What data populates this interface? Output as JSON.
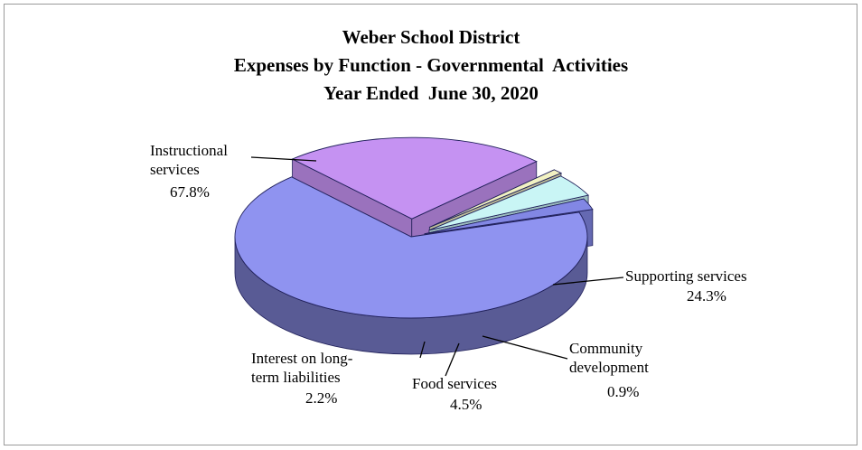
{
  "chart_data": {
    "type": "pie",
    "title": "Weber School District",
    "subtitle": "Expenses by Function - Governmental  Activities",
    "subtitle2": "Year Ended  June 30, 2020",
    "slices": [
      {
        "label_lines": [
          "Instructional",
          "services"
        ],
        "value": 67.8,
        "pct_text": "67.8%",
        "color": "#8f93f0"
      },
      {
        "label_lines": [
          "Supporting services"
        ],
        "value": 24.3,
        "pct_text": "24.3%",
        "color": "#c592f2"
      },
      {
        "label_lines": [
          "Community",
          "development"
        ],
        "value": 0.9,
        "pct_text": "0.9%",
        "color": "#f2f2c2"
      },
      {
        "label_lines": [
          "Food services"
        ],
        "value": 4.5,
        "pct_text": "4.5%",
        "color": "#c9f5f5"
      },
      {
        "label_lines": [
          "Interest on long-",
          "term liabilities"
        ],
        "value": 2.2,
        "pct_text": "2.2%",
        "color": "#8287e4"
      }
    ],
    "style": "3d-exploded"
  }
}
